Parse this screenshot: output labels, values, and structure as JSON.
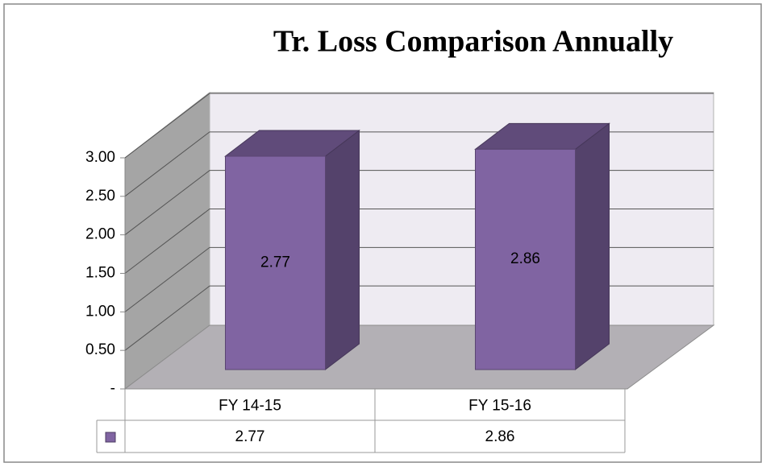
{
  "chart_data": {
    "type": "bar3d",
    "title": "Tr. Loss Comparison Annually",
    "categories": [
      "FY 14-15",
      "FY 15-16"
    ],
    "values": [
      2.77,
      2.86
    ],
    "color": "#8064a2",
    "ylim": [
      0,
      3
    ],
    "yticks": [
      {
        "value": 0,
        "label": "-"
      },
      {
        "value": 0.5,
        "label": "0.50"
      },
      {
        "value": 1,
        "label": "1.00"
      },
      {
        "value": 1.5,
        "label": "1.50"
      },
      {
        "value": 2,
        "label": "2.00"
      },
      {
        "value": 2.5,
        "label": "2.50"
      },
      {
        "value": 3,
        "label": "3.00"
      }
    ],
    "grid": true,
    "data_table": true
  }
}
